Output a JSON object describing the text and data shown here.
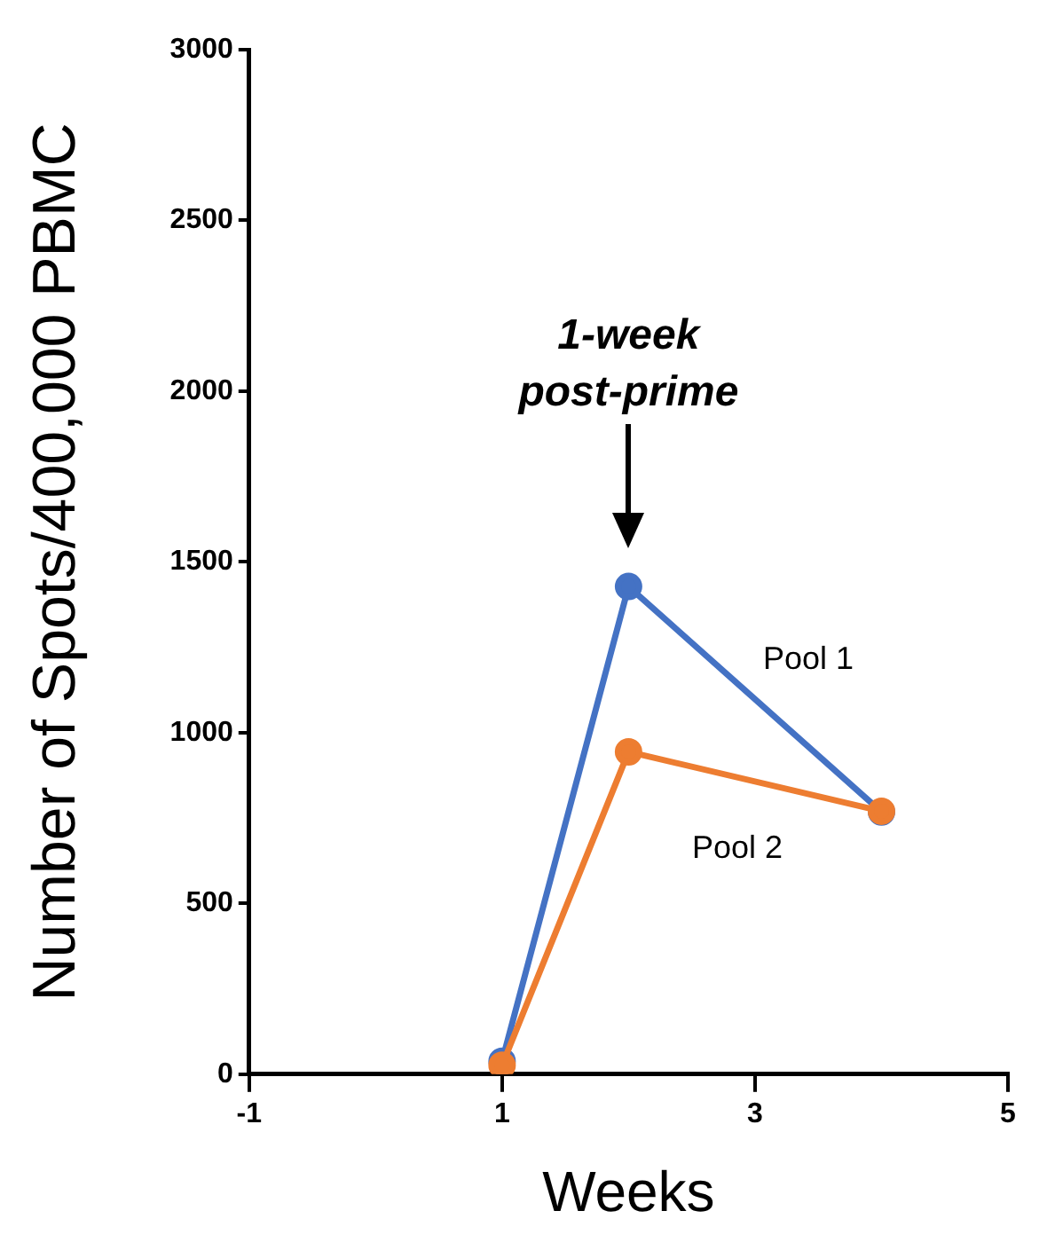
{
  "chart_data": {
    "type": "line",
    "xlabel": "Weeks",
    "ylabel": "Number of Spots/400,000 PBMC",
    "x": [
      1,
      2,
      4
    ],
    "series": [
      {
        "name": "Pool 1",
        "color": "#4472c4",
        "values": [
          38,
          1428,
          768
        ]
      },
      {
        "name": "Pool 2",
        "color": "#ed7d31",
        "values": [
          26,
          944,
          770
        ]
      }
    ],
    "xlim": [
      -1,
      5
    ],
    "xticks": [
      -1,
      1,
      3,
      5
    ],
    "ylim": [
      0,
      3000
    ],
    "yticks": [
      0,
      500,
      1000,
      1500,
      2000,
      2500,
      3000
    ],
    "annotations": [
      "1-week post-prime"
    ],
    "grid": false,
    "legend": false,
    "marker": "circle",
    "line_style": "solid"
  }
}
